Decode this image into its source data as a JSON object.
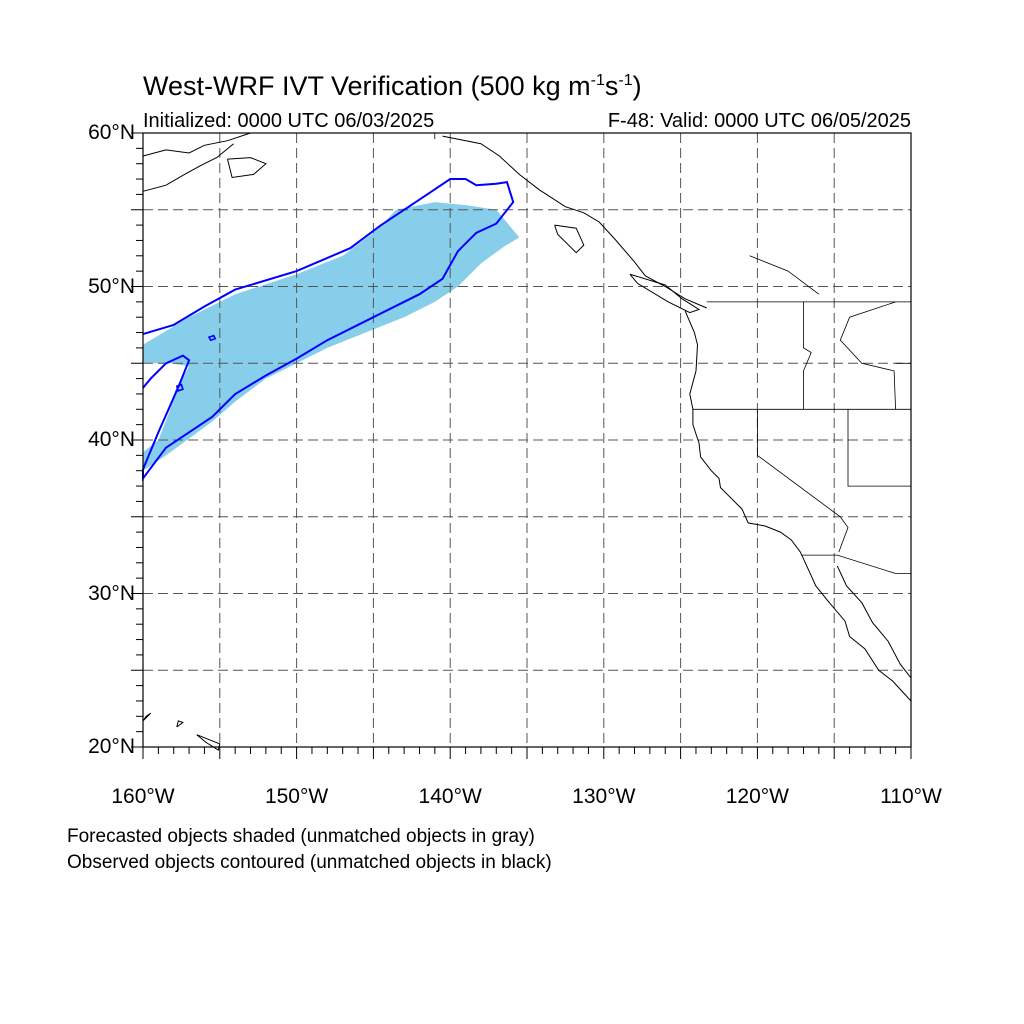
{
  "title": {
    "main": "West-WRF IVT Verification (500 kg m",
    "exp1": "-1",
    "mid": "s",
    "exp2": "-1",
    "end": ")"
  },
  "subtitle_left": "Initialized: 0000 UTC 06/03/2025",
  "subtitle_right": "F-48: Valid: 0000 UTC 06/05/2025",
  "y_ticks": [
    {
      "value": 60,
      "label": "60°N"
    },
    {
      "value": 50,
      "label": "50°N"
    },
    {
      "value": 40,
      "label": "40°N"
    },
    {
      "value": 30,
      "label": "30°N"
    },
    {
      "value": 20,
      "label": "20°N"
    }
  ],
  "x_ticks": [
    {
      "value": -160,
      "label": "160°W"
    },
    {
      "value": -150,
      "label": "150°W"
    },
    {
      "value": -140,
      "label": "140°W"
    },
    {
      "value": -130,
      "label": "130°W"
    },
    {
      "value": -120,
      "label": "120°W"
    },
    {
      "value": -110,
      "label": "110°W"
    }
  ],
  "legend": {
    "line1": "Forecasted objects shaded (unmatched objects in gray)",
    "line2": "Observed objects contoured (unmatched objects in black)"
  },
  "colors": {
    "forecast_fill": "#87CEEB",
    "observed_contour": "#0000FF",
    "coast": "#000000"
  },
  "map_extent": {
    "lon": [
      -160,
      -110
    ],
    "lat": [
      20,
      60
    ]
  },
  "forecast_object": {
    "label": "Forecasted object (matched)",
    "lonlat": [
      [
        -160,
        46.2
      ],
      [
        -157,
        48
      ],
      [
        -154,
        49.5
      ],
      [
        -150,
        50.8
      ],
      [
        -147,
        52
      ],
      [
        -145,
        53.5
      ],
      [
        -143.5,
        55
      ],
      [
        -141,
        55.5
      ],
      [
        -139,
        55.3
      ],
      [
        -137,
        55
      ],
      [
        -135.5,
        53.2
      ],
      [
        -136.5,
        52.6
      ],
      [
        -138,
        51.5
      ],
      [
        -139.5,
        50
      ],
      [
        -141,
        49
      ],
      [
        -143,
        48
      ],
      [
        -145.5,
        47
      ],
      [
        -148,
        46
      ],
      [
        -150,
        45
      ],
      [
        -152,
        44
      ],
      [
        -154,
        42.5
      ],
      [
        -155.5,
        41.2
      ],
      [
        -157,
        40.1
      ],
      [
        -158.5,
        39
      ],
      [
        -160,
        38
      ],
      [
        -160,
        39.2
      ],
      [
        -159,
        40
      ],
      [
        -158.3,
        41.8
      ],
      [
        -157.7,
        43.5
      ],
      [
        -157,
        44.8
      ],
      [
        -158.2,
        45
      ],
      [
        -160,
        45
      ]
    ]
  },
  "observed_object": {
    "label": "Observed object (matched)",
    "outer_lonlat": [
      [
        -160,
        46.9
      ],
      [
        -158,
        47.5
      ],
      [
        -156,
        48.7
      ],
      [
        -154,
        49.8
      ],
      [
        -150,
        51
      ],
      [
        -146.5,
        52.5
      ],
      [
        -144.5,
        54
      ],
      [
        -143,
        55
      ],
      [
        -141.5,
        56
      ],
      [
        -140,
        57
      ],
      [
        -139,
        57
      ],
      [
        -138.3,
        56.6
      ],
      [
        -137,
        56.7
      ],
      [
        -136.3,
        56.8
      ],
      [
        -135.9,
        55.5
      ],
      [
        -137,
        54.1
      ],
      [
        -138.3,
        53.5
      ],
      [
        -139.5,
        52.3
      ],
      [
        -140.5,
        50.5
      ],
      [
        -142,
        49.5
      ],
      [
        -145,
        48
      ],
      [
        -148,
        46.5
      ],
      [
        -150,
        45.3
      ],
      [
        -152,
        44.2
      ],
      [
        -154,
        43
      ],
      [
        -155.5,
        41.5
      ],
      [
        -157,
        40.5
      ],
      [
        -158.5,
        39.5
      ],
      [
        -160,
        37.5
      ],
      [
        -160,
        38.1
      ],
      [
        -159,
        40.5
      ],
      [
        -158.2,
        42.3
      ],
      [
        -157.6,
        43.7
      ],
      [
        -157,
        45.2
      ],
      [
        -157.4,
        45.5
      ],
      [
        -158.5,
        45
      ],
      [
        -159.5,
        44
      ],
      [
        -160,
        43.4
      ]
    ],
    "islands_lonlat": [
      [
        [
          -155.6,
          46.5
        ],
        [
          -155.3,
          46.6
        ],
        [
          -155.4,
          46.8
        ],
        [
          -155.7,
          46.7
        ]
      ],
      [
        [
          -157.7,
          43.2
        ],
        [
          -157.4,
          43.3
        ],
        [
          -157.5,
          43.6
        ],
        [
          -157.8,
          43.5
        ]
      ]
    ]
  },
  "coastlines_lonlat": [
    [
      [
        -160,
        58.5
      ],
      [
        -158.5,
        58.9
      ],
      [
        -157,
        58.7
      ],
      [
        -156,
        59.2
      ],
      [
        -154.5,
        59.5
      ],
      [
        -153,
        60
      ]
    ],
    [
      [
        -160,
        56.2
      ],
      [
        -158.5,
        56.6
      ],
      [
        -157.3,
        57.3
      ],
      [
        -156.2,
        57.9
      ],
      [
        -155.2,
        58.4
      ],
      [
        -154.1,
        59.3
      ]
    ],
    [
      [
        -154.5,
        58.3
      ],
      [
        -153,
        58.4
      ],
      [
        -152,
        58
      ],
      [
        -152.8,
        57.3
      ],
      [
        -154.2,
        57.1
      ],
      [
        -154.5,
        58.3
      ]
    ],
    [
      [
        -140.5,
        59.8
      ],
      [
        -138,
        59.3
      ],
      [
        -136.8,
        58.5
      ],
      [
        -135.5,
        57.3
      ],
      [
        -134.2,
        56.3
      ],
      [
        -132.5,
        55.2
      ],
      [
        -131.3,
        54.8
      ],
      [
        -130.3,
        54.2
      ],
      [
        -129.2,
        53
      ],
      [
        -128,
        51.6
      ],
      [
        -127.3,
        50.7
      ],
      [
        -126,
        50
      ],
      [
        -124.7,
        49.2
      ],
      [
        -123.3,
        48.6
      ]
    ],
    [
      [
        -133.2,
        54
      ],
      [
        -131.8,
        53.8
      ],
      [
        -131.3,
        52.7
      ],
      [
        -131.8,
        52.2
      ],
      [
        -133,
        53.4
      ],
      [
        -133.2,
        54
      ]
    ],
    [
      [
        -128.3,
        50.8
      ],
      [
        -126,
        50.1
      ],
      [
        -124.9,
        49.2
      ],
      [
        -123.8,
        48.5
      ],
      [
        -124.4,
        48.3
      ],
      [
        -125.8,
        49
      ],
      [
        -127.8,
        50.2
      ],
      [
        -128.3,
        50.8
      ]
    ],
    [
      [
        -124.7,
        48.4
      ],
      [
        -124.1,
        47
      ],
      [
        -123.9,
        46.2
      ],
      [
        -124,
        44.5
      ],
      [
        -124.4,
        43
      ],
      [
        -124.2,
        42
      ],
      [
        -124.2,
        41
      ],
      [
        -123.8,
        39.8
      ],
      [
        -123.7,
        38.9
      ],
      [
        -123,
        38
      ],
      [
        -122.5,
        37.5
      ],
      [
        -122.4,
        36.9
      ],
      [
        -121.9,
        36.4
      ],
      [
        -121,
        35.5
      ],
      [
        -120.6,
        34.6
      ],
      [
        -119.5,
        34.4
      ],
      [
        -118.5,
        34
      ],
      [
        -117.8,
        33.5
      ],
      [
        -117.2,
        32.7
      ],
      [
        -116.7,
        31.6
      ],
      [
        -116.2,
        30.5
      ],
      [
        -115.4,
        29.5
      ],
      [
        -114.3,
        28.2
      ],
      [
        -114,
        27.2
      ],
      [
        -113,
        26.4
      ],
      [
        -112.1,
        25
      ],
      [
        -111.2,
        24.3
      ],
      [
        -110,
        23
      ]
    ],
    [
      [
        -114.8,
        31.8
      ],
      [
        -114.2,
        30.5
      ],
      [
        -113.2,
        29.4
      ],
      [
        -112.5,
        28.1
      ],
      [
        -111.5,
        26.9
      ],
      [
        -110.7,
        25.4
      ],
      [
        -110,
        24.5
      ]
    ],
    [
      [
        -160,
        21.7
      ],
      [
        -159.5,
        22.2
      ],
      [
        -159.8,
        22.0
      ],
      [
        -160,
        21.7
      ]
    ],
    [
      [
        -157.8,
        21.3
      ],
      [
        -157.4,
        21.6
      ],
      [
        -157.7,
        21.7
      ],
      [
        -157.8,
        21.3
      ]
    ],
    [
      [
        -156.5,
        20.8
      ],
      [
        -155.9,
        20.3
      ],
      [
        -155.1,
        19.8
      ],
      [
        -155,
        20.2
      ],
      [
        -156.5,
        20.8
      ]
    ]
  ],
  "borders_lonlat": [
    [
      [
        -141,
        60
      ],
      [
        -141,
        59.6
      ]
    ],
    [
      [
        -123.3,
        49
      ],
      [
        -110,
        49
      ]
    ],
    [
      [
        -124.2,
        42
      ],
      [
        -110,
        42
      ]
    ],
    [
      [
        -117,
        49
      ],
      [
        -117,
        46
      ],
      [
        -116.5,
        45.7
      ],
      [
        -117,
        44.5
      ],
      [
        -117,
        42
      ]
    ],
    [
      [
        -111,
        49
      ],
      [
        -114,
        48
      ],
      [
        -114.6,
        46.5
      ],
      [
        -113.2,
        45
      ],
      [
        -111.1,
        44.5
      ],
      [
        -111,
        42
      ]
    ],
    [
      [
        -111,
        45
      ],
      [
        -110,
        45
      ]
    ],
    [
      [
        -120,
        42
      ],
      [
        -120,
        39
      ],
      [
        -114.6,
        35
      ],
      [
        -114.1,
        34.3
      ],
      [
        -114.7,
        32.7
      ]
    ],
    [
      [
        -114.1,
        42
      ],
      [
        -114.1,
        37
      ],
      [
        -110,
        37
      ]
    ],
    [
      [
        -117.1,
        32.5
      ],
      [
        -114.8,
        32.5
      ],
      [
        -111,
        31.3
      ],
      [
        -110,
        31.3
      ]
    ],
    [
      [
        -120.5,
        52
      ],
      [
        -118,
        51
      ],
      [
        -116,
        49.5
      ]
    ]
  ]
}
